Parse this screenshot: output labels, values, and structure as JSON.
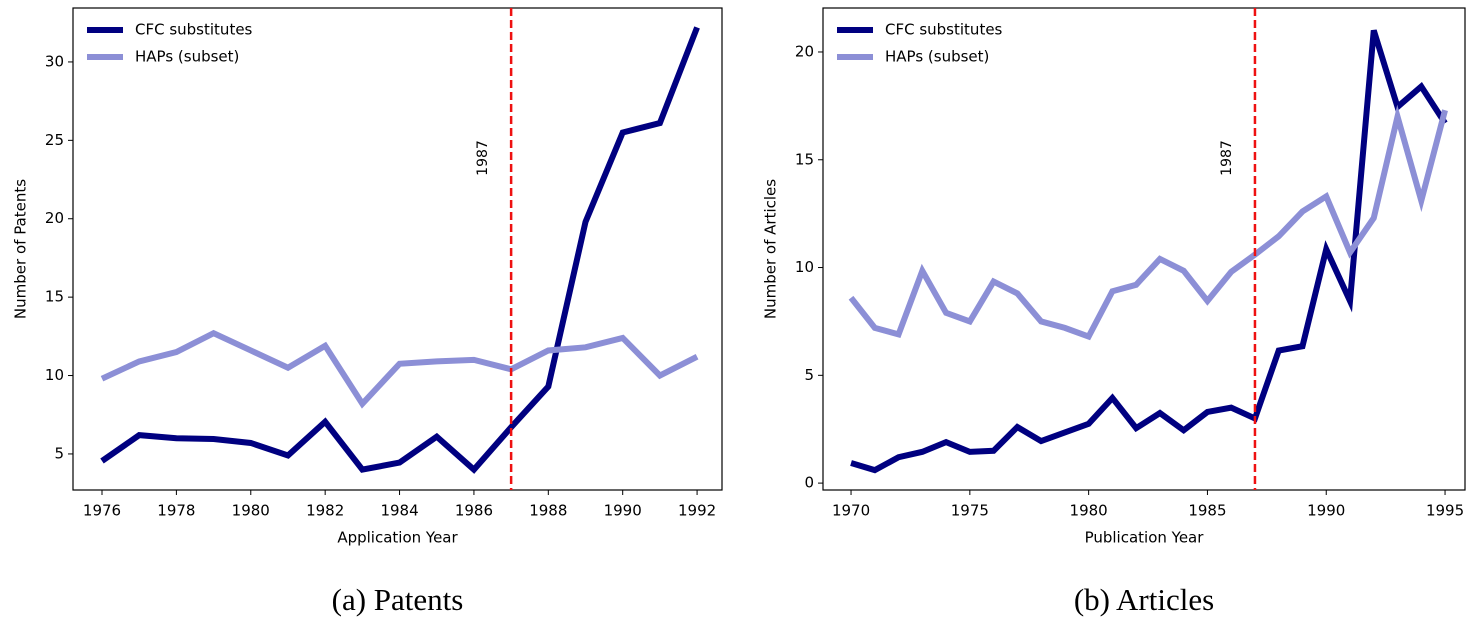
{
  "chart_data": [
    {
      "type": "line",
      "caption": "(a) Patents",
      "xlabel": "Application Year",
      "ylabel": "Number of Patents",
      "x": [
        1976,
        1977,
        1978,
        1979,
        1980,
        1981,
        1982,
        1983,
        1984,
        1985,
        1986,
        1987,
        1988,
        1989,
        1990,
        1991,
        1992
      ],
      "series": [
        {
          "name": "CFC substitutes",
          "color": "#000080",
          "values": [
            4.55,
            6.2,
            6.0,
            5.95,
            5.7,
            4.9,
            7.05,
            4.0,
            4.45,
            6.1,
            4.0,
            6.7,
            9.3,
            19.8,
            25.5,
            26.1,
            32.2
          ]
        },
        {
          "name": "HAPs (subset)",
          "color": "#8c8fd6",
          "values": [
            9.8,
            10.9,
            11.5,
            12.7,
            11.6,
            10.5,
            11.9,
            8.2,
            10.75,
            10.9,
            11.0,
            10.4,
            11.6,
            11.8,
            12.4,
            10.0,
            11.2
          ]
        }
      ],
      "xlim": [
        1975.22,
        1992.67
      ],
      "ylim": [
        2.7,
        33.44
      ],
      "xticks": [
        1976,
        1978,
        1980,
        1982,
        1984,
        1986,
        1988,
        1990,
        1992
      ],
      "yticks": [
        5,
        10,
        15,
        20,
        25,
        30
      ],
      "vline": {
        "x": 1987,
        "color": "#ee1111"
      },
      "legend": "upper-left"
    },
    {
      "type": "line",
      "caption": "(b) Articles",
      "xlabel": "Publication Year",
      "ylabel": "Number of Articles",
      "x": [
        1970,
        1971,
        1972,
        1973,
        1974,
        1975,
        1976,
        1977,
        1978,
        1979,
        1980,
        1981,
        1982,
        1983,
        1984,
        1985,
        1986,
        1987,
        1988,
        1989,
        1990,
        1991,
        1992,
        1993,
        1994,
        1995
      ],
      "series": [
        {
          "name": "CFC substitutes",
          "color": "#000080",
          "values": [
            0.93,
            0.6,
            1.2,
            1.45,
            1.9,
            1.45,
            1.5,
            2.6,
            1.95,
            2.35,
            2.75,
            3.95,
            2.55,
            3.25,
            2.45,
            3.3,
            3.5,
            3.0,
            6.15,
            6.35,
            10.85,
            8.45,
            21.0,
            17.45,
            18.4,
            16.7
          ]
        },
        {
          "name": "HAPs (subset)",
          "color": "#8c8fd6",
          "values": [
            8.6,
            7.2,
            6.9,
            9.85,
            7.9,
            7.5,
            9.35,
            8.8,
            7.5,
            7.2,
            6.8,
            8.9,
            9.2,
            10.4,
            9.85,
            8.45,
            9.8,
            10.6,
            11.45,
            12.6,
            13.3,
            10.7,
            12.3,
            17.0,
            13.1,
            17.3
          ]
        }
      ],
      "xlim": [
        1968.82,
        1995.84
      ],
      "ylim": [
        -0.32,
        22.04
      ],
      "xticks": [
        1970,
        1975,
        1980,
        1985,
        1990,
        1995
      ],
      "yticks": [
        0,
        5,
        10,
        15,
        20
      ],
      "vline": {
        "x": 1987,
        "color": "#ee1111"
      },
      "legend": "upper-left"
    }
  ]
}
